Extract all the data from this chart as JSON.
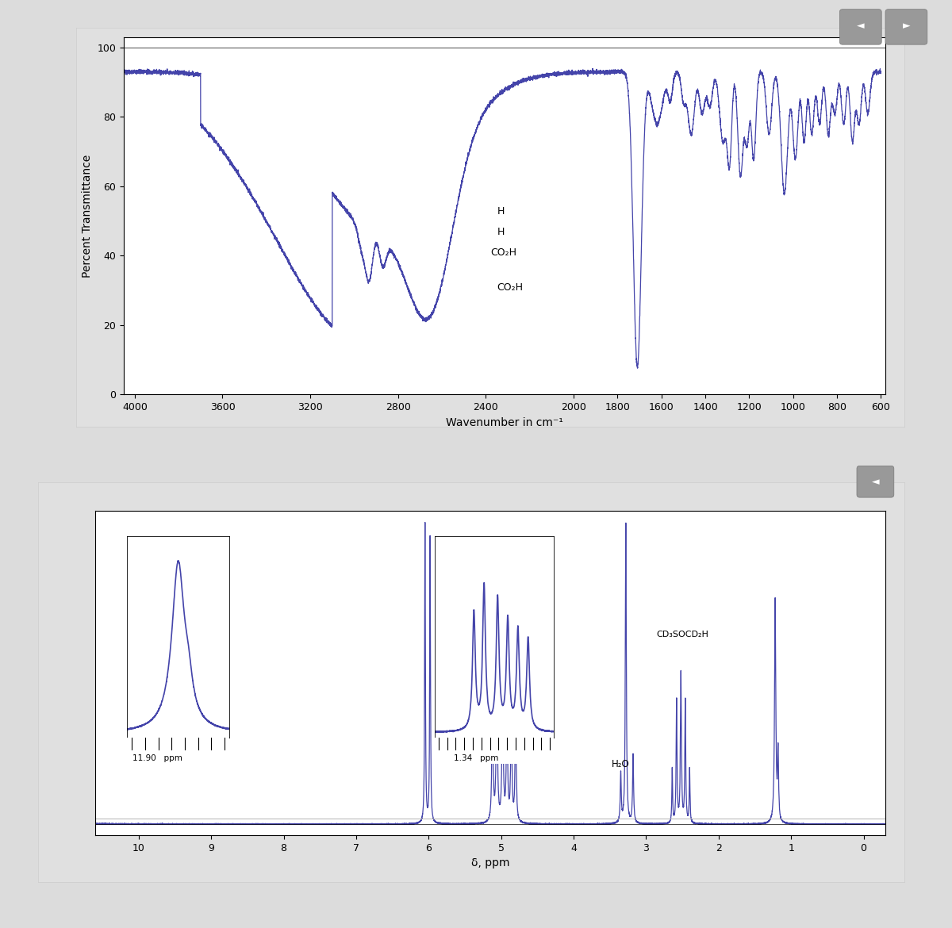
{
  "bg_color": "#dcdcdc",
  "panel_bg": "#ffffff",
  "panel_border": "#cccccc",
  "line_color": "#4444aa",
  "ir_ylabel": "Percent Transmittance",
  "ir_xlabel": "Wavenumber in cm⁻¹",
  "ir_yticks": [
    0,
    20,
    40,
    60,
    80,
    100
  ],
  "ir_xticks": [
    4000,
    3600,
    3200,
    2800,
    2400,
    2000,
    1800,
    1600,
    1400,
    1200,
    1000,
    800,
    600
  ],
  "ir_xlim": [
    4050,
    580
  ],
  "ir_ylim": [
    0,
    103
  ],
  "nmr_xlabel": "δ, ppm",
  "nmr_xticks": [
    10,
    9,
    8,
    7,
    6,
    5,
    4,
    3,
    2,
    1,
    0
  ],
  "nmr_xlim": [
    10.6,
    -0.3
  ],
  "nmr_ylim": [
    -0.04,
    1.15
  ]
}
